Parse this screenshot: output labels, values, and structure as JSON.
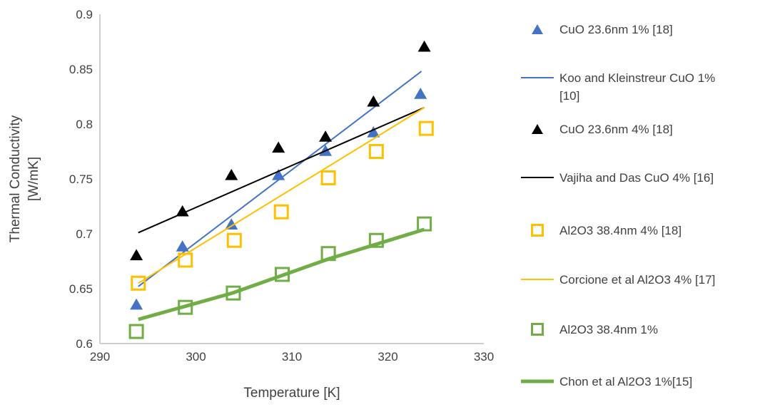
{
  "chart_data": {
    "type": "scatter",
    "title": "",
    "xlabel": "Temperature [K]",
    "ylabel_lines": [
      "Thermal Conductivity",
      "[W/mK]"
    ],
    "xlim": [
      290,
      330
    ],
    "ylim": [
      0.6,
      0.9
    ],
    "xticks": [
      290,
      300,
      310,
      320,
      330
    ],
    "yticks": [
      0.6,
      0.65,
      0.7,
      0.75,
      0.8,
      0.85,
      0.9
    ],
    "xtick_labels": [
      "290",
      "300",
      "310",
      "320",
      "330"
    ],
    "ytick_labels": [
      "0.6",
      "0.65",
      "0.7",
      "0.75",
      "0.8",
      "0.85",
      "0.9"
    ],
    "grid": false,
    "legend_position": "right",
    "series": [
      {
        "name": "CuO 23.6nm 1% [18]",
        "kind": "marker",
        "marker": "triangle",
        "color": "#4472C4",
        "x": [
          293.8,
          298.6,
          303.7,
          308.6,
          313.5,
          318.5,
          323.4
        ],
        "y": [
          0.636,
          0.689,
          0.709,
          0.754,
          0.776,
          0.793,
          0.828
        ]
      },
      {
        "name": "Koo and Kleinstreur CuO 1% [10]",
        "name_lines": [
          "Koo and Kleinstreur CuO 1%",
          "[10]"
        ],
        "kind": "line",
        "color": "#4472C4",
        "width": 2,
        "x": [
          294,
          323.5
        ],
        "y": [
          0.652,
          0.848
        ]
      },
      {
        "name": "CuO 23.6nm 4% [18]",
        "kind": "marker",
        "marker": "triangle",
        "color": "#000000",
        "x": [
          293.8,
          298.6,
          303.7,
          308.6,
          313.5,
          318.5,
          323.8
        ],
        "y": [
          0.681,
          0.721,
          0.754,
          0.779,
          0.789,
          0.821,
          0.871
        ]
      },
      {
        "name": "Vajiha and Das CuO 4% [16]",
        "kind": "line",
        "color": "#000000",
        "width": 2,
        "x": [
          294,
          323.8
        ],
        "y": [
          0.701,
          0.815
        ]
      },
      {
        "name": "Al2O3 38.4nm 4% [18]",
        "kind": "marker",
        "marker": "square",
        "color": "#FFC000",
        "x": [
          294,
          298.9,
          304,
          308.9,
          313.8,
          318.8,
          324
        ],
        "y": [
          0.655,
          0.676,
          0.694,
          0.72,
          0.751,
          0.775,
          0.796
        ]
      },
      {
        "name": "Corcione et al Al2O3 4% [17]",
        "kind": "line",
        "color": "#FFC000",
        "width": 2,
        "x": [
          294,
          323.8
        ],
        "y": [
          0.655,
          0.815
        ]
      },
      {
        "name": "Al2O3 38.4nm 1%",
        "kind": "marker",
        "marker": "square",
        "color": "#70AD47",
        "x": [
          293.8,
          298.9,
          303.9,
          309,
          313.8,
          318.8,
          323.8
        ],
        "y": [
          0.611,
          0.633,
          0.646,
          0.663,
          0.682,
          0.694,
          0.709
        ]
      },
      {
        "name": "Chon et al Al2O3 1%[15]",
        "kind": "line",
        "color": "#70AD47",
        "width": 5,
        "x": [
          294,
          303.8,
          313.8,
          323.8
        ],
        "y": [
          0.622,
          0.646,
          0.677,
          0.704
        ]
      }
    ]
  }
}
